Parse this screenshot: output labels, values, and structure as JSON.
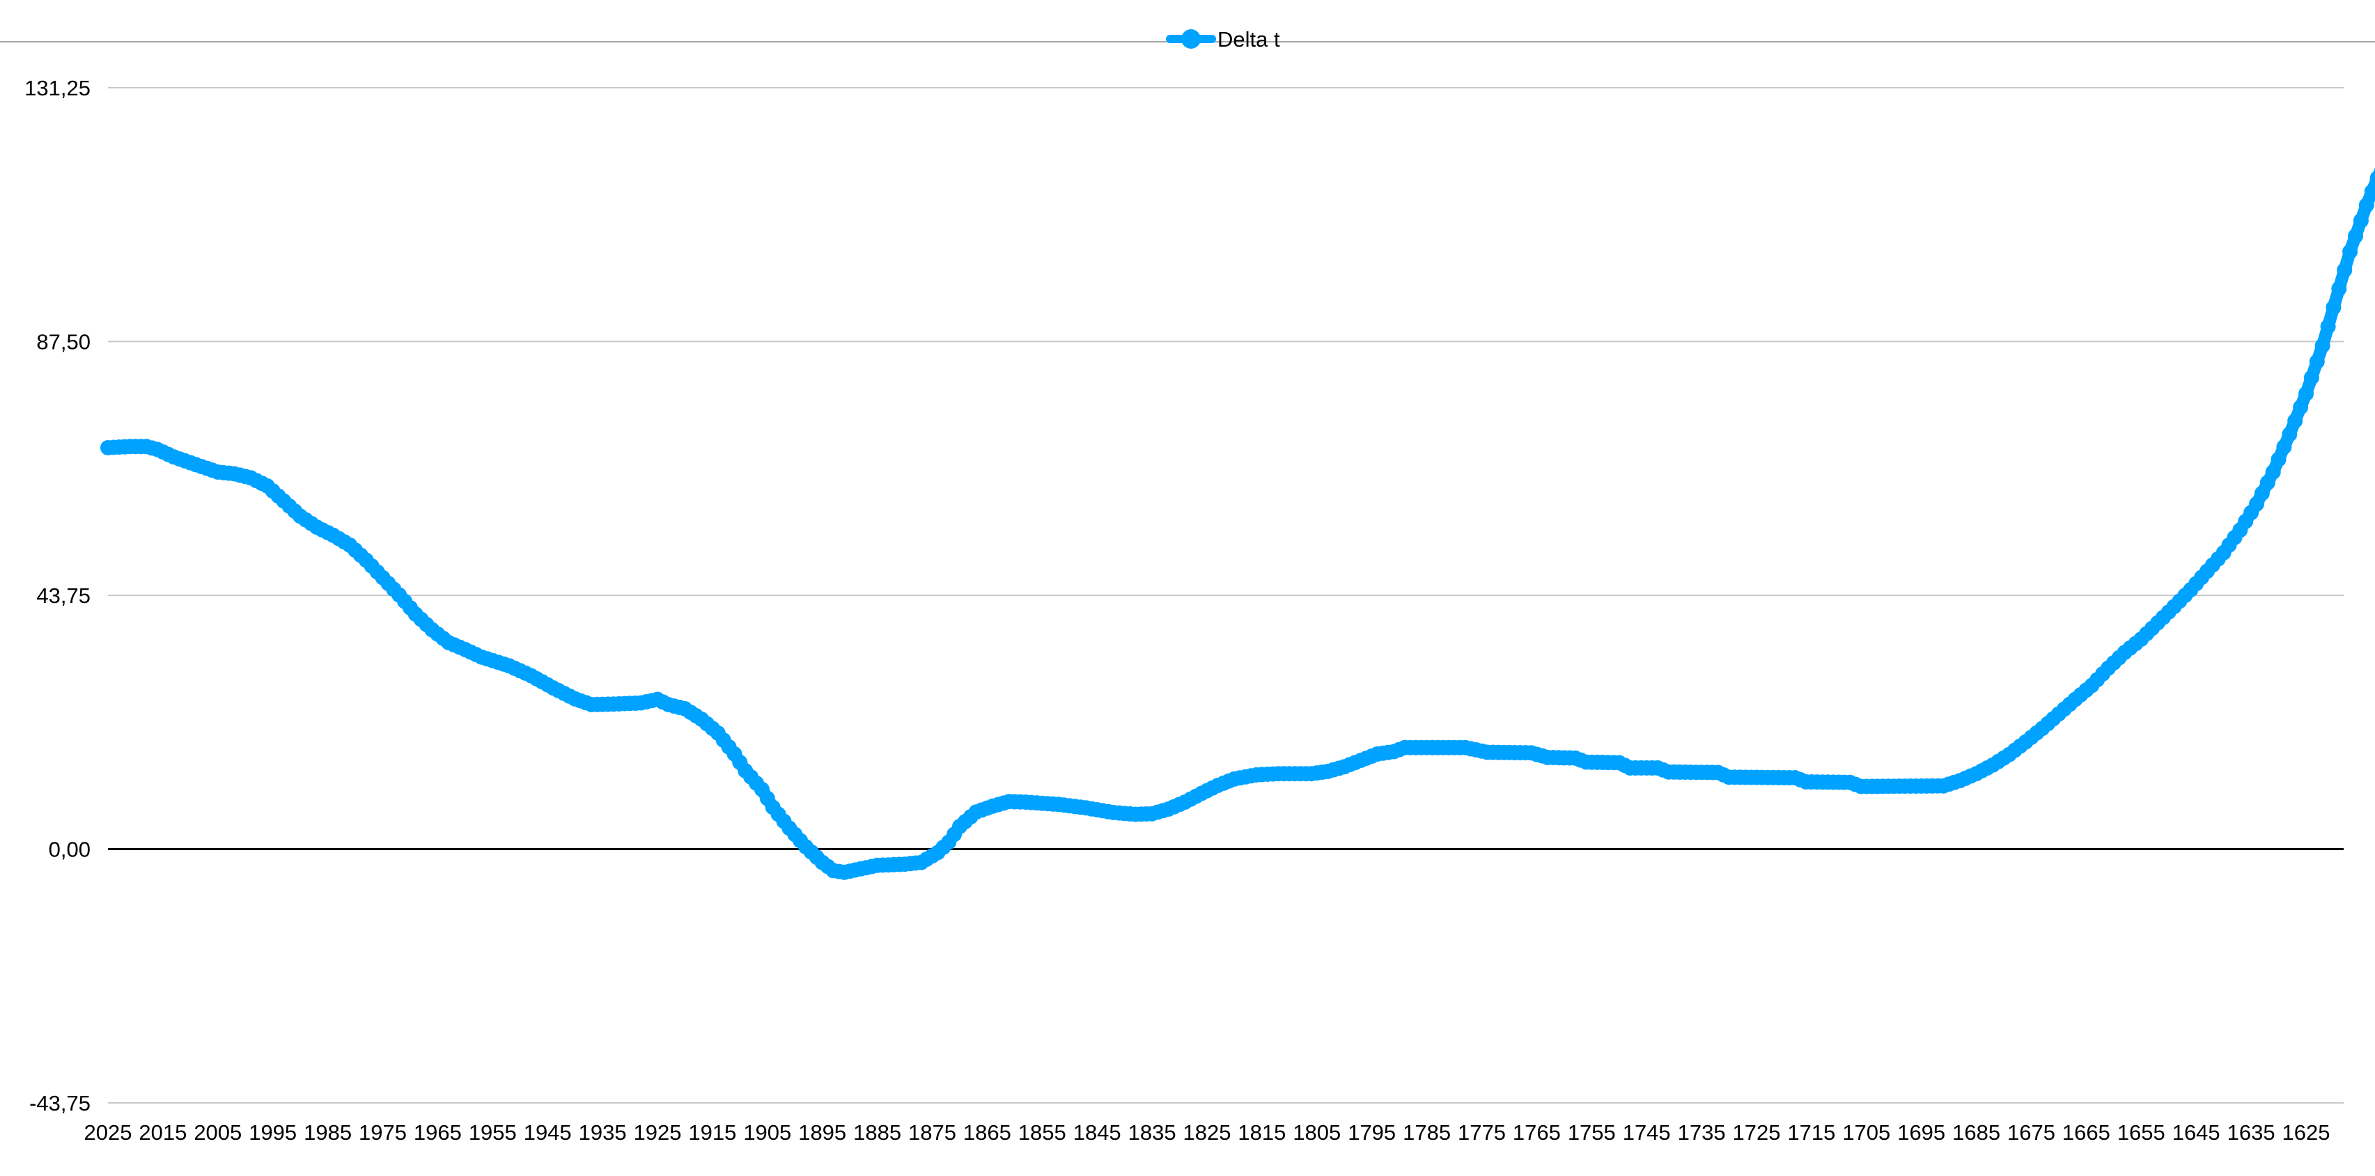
{
  "chart_data": {
    "type": "line",
    "title": "",
    "xlabel": "",
    "ylabel": "",
    "legend_position": "top",
    "grid": true,
    "ylim": [
      -43.75,
      131.25
    ],
    "y_ticks": [
      "131,25",
      "87,50",
      "43,75",
      "0,00",
      "-43,75"
    ],
    "y_tick_values": [
      131.25,
      87.5,
      43.75,
      0,
      -43.75
    ],
    "x_ticks": [
      "2025",
      "2015",
      "2005",
      "1995",
      "1985",
      "1975",
      "1965",
      "1955",
      "1945",
      "1935",
      "1925",
      "1915",
      "1905",
      "1895",
      "1885",
      "1875",
      "1865",
      "1855",
      "1845",
      "1835",
      "1825",
      "1815",
      "1805",
      "1795",
      "1785",
      "1775",
      "1765",
      "1755",
      "1745",
      "1735",
      "1725",
      "1715",
      "1705",
      "1695",
      "1685",
      "1675",
      "1665",
      "1655",
      "1645",
      "1635",
      "1625"
    ],
    "x_range": [
      2025,
      1620
    ],
    "series": [
      {
        "name": "Delta t",
        "color": "#00a2ff",
        "anchors": [
          [
            2025,
            69.2
          ],
          [
            2021,
            69.4
          ],
          [
            2018,
            69.4
          ],
          [
            2016,
            68.9
          ],
          [
            2013,
            67.6
          ],
          [
            2010,
            66.6
          ],
          [
            2005,
            65.0
          ],
          [
            2002,
            64.7
          ],
          [
            1999,
            64.0
          ],
          [
            1996,
            62.6
          ],
          [
            1993,
            60.0
          ],
          [
            1990,
            57.4
          ],
          [
            1987,
            55.5
          ],
          [
            1984,
            54.1
          ],
          [
            1981,
            52.4
          ],
          [
            1978,
            49.8
          ],
          [
            1975,
            46.8
          ],
          [
            1972,
            43.8
          ],
          [
            1969,
            40.5
          ],
          [
            1966,
            37.8
          ],
          [
            1963,
            35.6
          ],
          [
            1960,
            34.4
          ],
          [
            1957,
            33.1
          ],
          [
            1952,
            31.6
          ],
          [
            1948,
            29.9
          ],
          [
            1944,
            27.8
          ],
          [
            1940,
            25.9
          ],
          [
            1937,
            24.9
          ],
          [
            1933,
            25.0
          ],
          [
            1928,
            25.2
          ],
          [
            1925,
            25.8
          ],
          [
            1923,
            24.9
          ],
          [
            1920,
            24.2
          ],
          [
            1917,
            22.4
          ],
          [
            1914,
            20.0
          ],
          [
            1911,
            16.4
          ],
          [
            1909,
            13.5
          ],
          [
            1906,
            10.3
          ],
          [
            1904,
            7.2
          ],
          [
            1901,
            3.6
          ],
          [
            1898,
            0.4
          ],
          [
            1895,
            -2.3
          ],
          [
            1893,
            -3.7
          ],
          [
            1891,
            -4.0
          ],
          [
            1889,
            -3.6
          ],
          [
            1885,
            -2.8
          ],
          [
            1880,
            -2.6
          ],
          [
            1877,
            -2.3
          ],
          [
            1874,
            -0.6
          ],
          [
            1872,
            1.2
          ],
          [
            1870,
            3.9
          ],
          [
            1867,
            6.4
          ],
          [
            1864,
            7.4
          ],
          [
            1861,
            8.2
          ],
          [
            1858,
            8.1
          ],
          [
            1852,
            7.7
          ],
          [
            1847,
            7.1
          ],
          [
            1842,
            6.3
          ],
          [
            1838,
            6.0
          ],
          [
            1835,
            6.1
          ],
          [
            1832,
            6.9
          ],
          [
            1829,
            8.1
          ],
          [
            1826,
            9.6
          ],
          [
            1823,
            11.0
          ],
          [
            1820,
            12.1
          ],
          [
            1816,
            12.8
          ],
          [
            1812,
            13.0
          ],
          [
            1806,
            13.0
          ],
          [
            1803,
            13.4
          ],
          [
            1800,
            14.2
          ],
          [
            1797,
            15.3
          ],
          [
            1794,
            16.4
          ],
          [
            1791,
            16.8
          ],
          [
            1789,
            17.5
          ],
          [
            1778,
            17.5
          ],
          [
            1774,
            16.7
          ],
          [
            1766,
            16.6
          ],
          [
            1763,
            15.8
          ],
          [
            1758,
            15.7
          ],
          [
            1756,
            15.0
          ],
          [
            1750,
            14.9
          ],
          [
            1748,
            14.0
          ],
          [
            1743,
            14.0
          ],
          [
            1741,
            13.3
          ],
          [
            1732,
            13.2
          ],
          [
            1730,
            12.4
          ],
          [
            1718,
            12.3
          ],
          [
            1716,
            11.6
          ],
          [
            1708,
            11.5
          ],
          [
            1706,
            10.8
          ],
          [
            1691,
            10.9
          ],
          [
            1688,
            11.8
          ],
          [
            1685,
            13.0
          ],
          [
            1682,
            14.5
          ],
          [
            1679,
            16.3
          ],
          [
            1676,
            18.5
          ],
          [
            1673,
            20.8
          ],
          [
            1670,
            23.3
          ],
          [
            1667,
            25.8
          ],
          [
            1664,
            28.2
          ],
          [
            1661,
            31.2
          ],
          [
            1658,
            33.9
          ],
          [
            1655,
            36.2
          ],
          [
            1652,
            39.0
          ],
          [
            1649,
            41.8
          ],
          [
            1646,
            44.7
          ],
          [
            1643,
            47.9
          ],
          [
            1640,
            51.1
          ],
          [
            1637,
            55.0
          ],
          [
            1634,
            59.5
          ],
          [
            1631,
            65.0
          ],
          [
            1628,
            71.5
          ],
          [
            1625,
            78.5
          ],
          [
            1622,
            86.8
          ],
          [
            1619.5,
            95.0
          ],
          [
            1617,
            103.0
          ],
          [
            1614,
            111.0
          ],
          [
            1611,
            118.0
          ],
          [
            1609,
            124.0
          ]
        ]
      }
    ]
  }
}
